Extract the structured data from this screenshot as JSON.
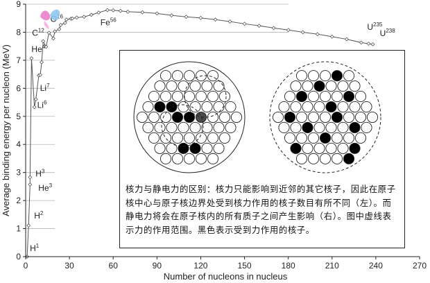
{
  "chart_data": {
    "type": "line",
    "title": "",
    "xlabel": "Number of nucleons in nucleus",
    "ylabel": "Average binding energy per nucleon (MeV)",
    "xlim": [
      0,
      270
    ],
    "ylim": [
      0,
      9
    ],
    "x_ticks": [
      "0",
      "30",
      "60",
      "90",
      "120",
      "150",
      "180",
      "210",
      "240",
      "270"
    ],
    "y_ticks": [
      "0",
      "1",
      "2",
      "3",
      "4",
      "5",
      "6",
      "7",
      "8",
      "9"
    ],
    "grid": "horizontal, partial",
    "series": [
      {
        "x": [
          1,
          2,
          3,
          3,
          4,
          6,
          7,
          9,
          10,
          11,
          12,
          14,
          16,
          19,
          20,
          23,
          24,
          27,
          28,
          31,
          32,
          35,
          40,
          45,
          50,
          56,
          60,
          65,
          70,
          80,
          90,
          100,
          110,
          120,
          130,
          140,
          150,
          160,
          170,
          180,
          190,
          200,
          210,
          220,
          230,
          235,
          238
        ],
        "y": [
          0,
          1.11,
          2.57,
          2.83,
          7.07,
          5.33,
          5.61,
          6.46,
          6.48,
          6.93,
          7.68,
          7.48,
          7.98,
          7.78,
          8.03,
          8.11,
          8.26,
          8.33,
          8.45,
          8.48,
          8.49,
          8.52,
          8.55,
          8.62,
          8.7,
          8.79,
          8.78,
          8.76,
          8.73,
          8.71,
          8.67,
          8.6,
          8.55,
          8.51,
          8.45,
          8.38,
          8.3,
          8.23,
          8.15,
          8.08,
          8.0,
          7.93,
          7.84,
          7.75,
          7.63,
          7.59,
          7.57
        ]
      }
    ],
    "annotations": [
      {
        "base": "H",
        "mass": "1",
        "x": 1,
        "y": 0
      },
      {
        "base": "H",
        "mass": "2",
        "x": 2,
        "y": 1.11
      },
      {
        "base": "H",
        "mass": "3",
        "x": 3,
        "y": 2.83
      },
      {
        "base": "He",
        "mass": "3",
        "x": 3,
        "y": 2.57
      },
      {
        "base": "He",
        "mass": "4",
        "x": 4,
        "y": 7.07
      },
      {
        "base": "Li",
        "mass": "7",
        "x": 7,
        "y": 5.61
      },
      {
        "base": "Li",
        "mass": "6",
        "x": 6,
        "y": 5.33
      },
      {
        "base": "C",
        "mass": "12",
        "x": 12,
        "y": 7.68
      },
      {
        "base": "O",
        "mass": "16",
        "x": 16,
        "y": 7.98
      },
      {
        "base": "Fe",
        "mass": "56",
        "x": 56,
        "y": 8.79
      },
      {
        "base": "U",
        "mass": "235",
        "x": 235,
        "y": 7.59
      },
      {
        "base": "U",
        "mass": "238",
        "x": 238,
        "y": 7.57
      }
    ]
  },
  "inset": {
    "caption": "核力与静电力的区别：核力只能影响到近邻的其它核子，因此在原子核中心与原子核边界处受到核力作用的核子数目有所不同（左）。而静电力将会在原子核内的所有质子之间产生影响（右）。图中虚线表示力的作用范围。黑色表示受到力作用的核子。",
    "colors": {
      "affected": "#000000",
      "dark_gray": "#4a4a4a",
      "unaffected": "#ffffff",
      "outline": "#222222"
    }
  }
}
